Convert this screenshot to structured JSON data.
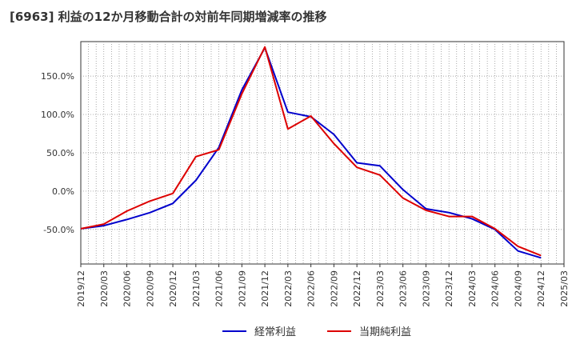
{
  "chart_data": {
    "type": "line",
    "title": "[6963]  利益の12か月移動合計の対前年同期増減率の推移",
    "xlabel": "",
    "ylabel": "",
    "ylim": [
      -95,
      195
    ],
    "y_ticks": [
      -50,
      0,
      50,
      100,
      150
    ],
    "y_tick_labels": [
      "-50.0%",
      "0.0%",
      "50.0%",
      "100.0%",
      "150.0%"
    ],
    "x": [
      "2019/12",
      "2020/03",
      "2020/06",
      "2020/09",
      "2020/12",
      "2021/03",
      "2021/06",
      "2021/09",
      "2021/12",
      "2022/03",
      "2022/06",
      "2022/09",
      "2022/12",
      "2023/03",
      "2023/06",
      "2023/09",
      "2023/12",
      "2024/03",
      "2024/06",
      "2024/09",
      "2024/12",
      "2025/03"
    ],
    "grid": true,
    "legend_position": "bottom",
    "series": [
      {
        "name": "経常利益",
        "color": "#0000cc",
        "values": [
          -49,
          -45,
          -37,
          -28,
          -16,
          14,
          57,
          132,
          187,
          103,
          97,
          74,
          37,
          33,
          2,
          -23,
          -28,
          -36,
          -50,
          -78,
          -87,
          null
        ]
      },
      {
        "name": "当期純利益",
        "color": "#dd0000",
        "values": [
          -49,
          -43,
          -26,
          -13,
          -3,
          45,
          54,
          127,
          188,
          81,
          98,
          62,
          31,
          21,
          -9,
          -25,
          -33,
          -33,
          -49,
          -72,
          -84,
          null
        ]
      }
    ]
  }
}
